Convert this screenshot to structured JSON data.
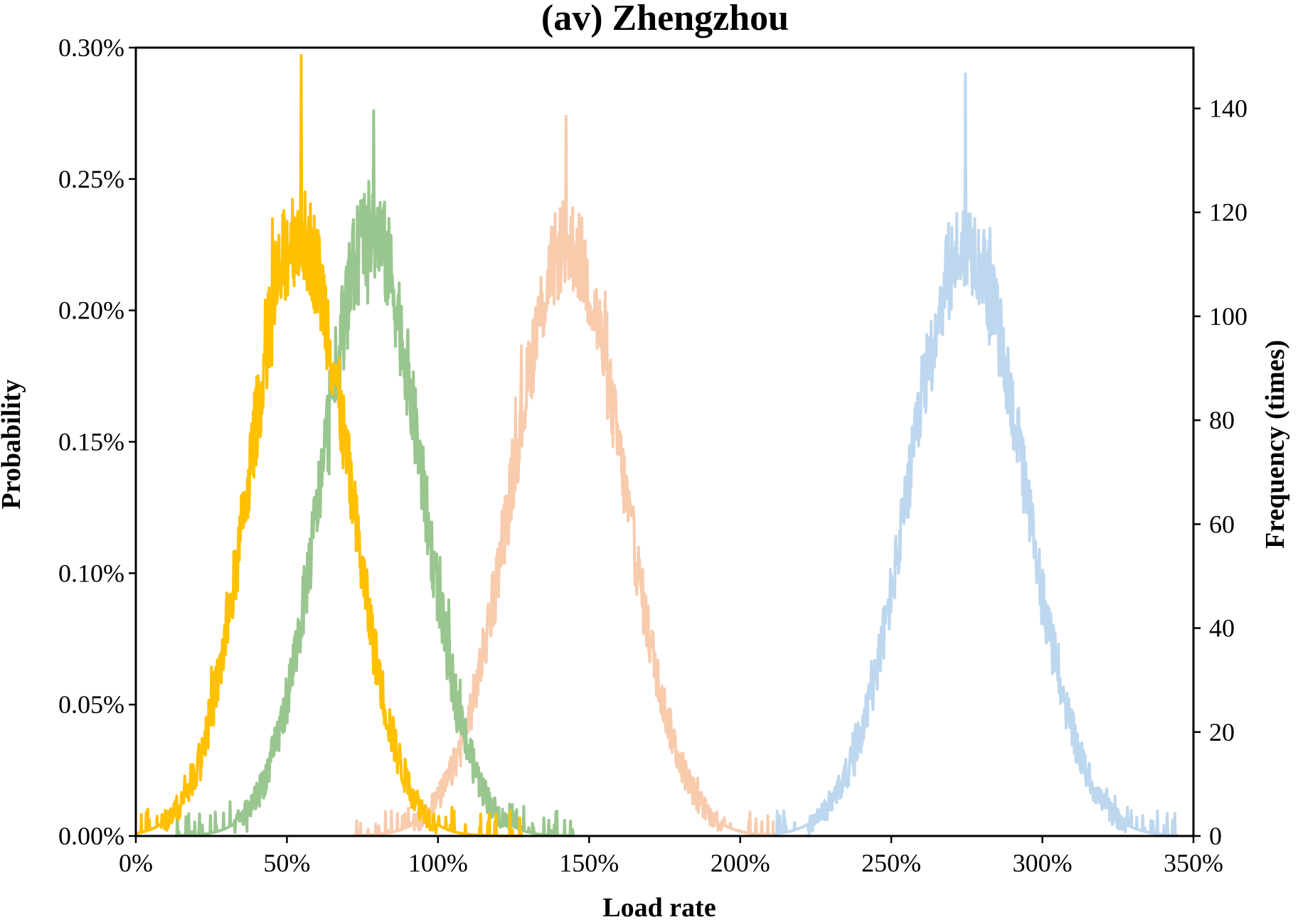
{
  "chart_data": {
    "type": "line",
    "title": "(av) Zhengzhou",
    "xlabel": "Load rate",
    "ylabel": "Probability",
    "y2label": "Frequency (times)",
    "xlim": [
      0,
      3.5
    ],
    "ylim": [
      0,
      0.003
    ],
    "y2lim": [
      0,
      151.7
    ],
    "xticks": [
      0,
      0.5,
      1.0,
      1.5,
      2.0,
      2.5,
      3.0,
      3.5
    ],
    "xtick_labels": [
      "0%",
      "50%",
      "100%",
      "150%",
      "200%",
      "250%",
      "300%",
      "350%"
    ],
    "yticks": [
      0,
      0.0005,
      0.001,
      0.0015,
      0.002,
      0.0025,
      0.003
    ],
    "ytick_labels": [
      "0.00%",
      "0.05%",
      "0.10%",
      "0.15%",
      "0.20%",
      "0.25%",
      "0.30%"
    ],
    "y2ticks": [
      0,
      20,
      40,
      60,
      80,
      100,
      120,
      140
    ],
    "y2tick_labels": [
      "0",
      "20",
      "40",
      "60",
      "80",
      "100",
      "120",
      "140"
    ],
    "grid": false,
    "legend": "none",
    "series": [
      {
        "color": "#BDD7EE",
        "center": 2.75,
        "sd": 0.188,
        "peak": 0.00225,
        "noise": 0.00018,
        "xmin": 2.11,
        "xmax": 3.45,
        "max_spike": 0.0029
      },
      {
        "color": "#F8CBAD",
        "center": 1.43,
        "sd": 0.183,
        "peak": 0.00225,
        "noise": 0.00018,
        "xmin": 0.72,
        "xmax": 2.11,
        "max_spike": 0.00274
      },
      {
        "color": "#99C68E",
        "center": 0.78,
        "sd": 0.163,
        "peak": 0.0023,
        "noise": 0.0002,
        "xmin": 0.13,
        "xmax": 1.45,
        "max_spike": 0.00276
      },
      {
        "color": "#FFC000",
        "center": 0.54,
        "sd": 0.163,
        "peak": 0.0023,
        "noise": 0.0002,
        "xmin": 0.0,
        "xmax": 1.28,
        "max_spike": 0.00297
      }
    ]
  }
}
